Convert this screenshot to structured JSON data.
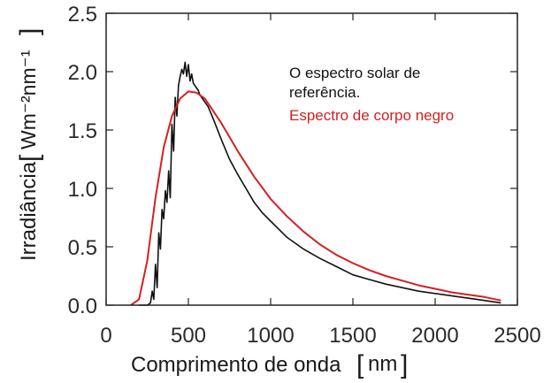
{
  "chart_data": {
    "type": "line",
    "xlabel": "Comprimento de onda",
    "xunit": "nm",
    "ylabel": "Irradiância",
    "yunit": "Wm⁻²nm⁻¹",
    "xlim": [
      0,
      2500
    ],
    "ylim": [
      0,
      2.5
    ],
    "xticks": [
      0,
      500,
      1000,
      1500,
      2000,
      2500
    ],
    "yticks": [
      "0.0",
      "0.5",
      "1.0",
      "1.5",
      "2.0",
      "2.5"
    ],
    "legend_position": "top-right",
    "legend": [
      {
        "text": "O espectro solar de",
        "color": "#111111"
      },
      {
        "text": "referência.",
        "color": "#111111"
      },
      {
        "text": "Espectro de corpo negro",
        "color": "#d42020"
      }
    ],
    "series": [
      {
        "color": "#111111",
        "x": [
          200,
          250,
          270,
          280,
          290,
          300,
          310,
          320,
          330,
          340,
          350,
          360,
          370,
          380,
          390,
          400,
          410,
          420,
          430,
          440,
          450,
          460,
          470,
          480,
          490,
          500,
          510,
          520,
          530,
          540,
          550,
          560,
          570,
          580,
          600,
          620,
          650,
          700,
          750,
          800,
          850,
          900,
          950,
          1000,
          1100,
          1200,
          1300,
          1400,
          1500,
          1600,
          1700,
          1800,
          1900,
          2000,
          2100,
          2200,
          2300,
          2400
        ],
        "y": [
          0,
          0,
          0.02,
          0.12,
          0.05,
          0.35,
          0.15,
          0.62,
          0.48,
          0.82,
          0.74,
          0.98,
          0.88,
          1.15,
          0.92,
          1.55,
          1.32,
          1.78,
          1.62,
          1.88,
          1.96,
          2.02,
          1.98,
          2.08,
          1.96,
          2.06,
          1.92,
          1.98,
          1.9,
          1.88,
          1.86,
          1.84,
          1.8,
          1.78,
          1.74,
          1.7,
          1.6,
          1.42,
          1.25,
          1.12,
          1.0,
          0.88,
          0.79,
          0.72,
          0.58,
          0.48,
          0.4,
          0.33,
          0.26,
          0.22,
          0.18,
          0.15,
          0.12,
          0.1,
          0.08,
          0.06,
          0.04,
          0.02
        ]
      },
      {
        "color": "#d42020",
        "x": [
          150,
          200,
          250,
          300,
          350,
          400,
          450,
          500,
          550,
          600,
          700,
          800,
          900,
          1000,
          1100,
          1200,
          1300,
          1400,
          1500,
          1600,
          1700,
          1800,
          1900,
          2000,
          2100,
          2200,
          2300,
          2400
        ],
        "y": [
          0,
          0.05,
          0.38,
          0.92,
          1.35,
          1.62,
          1.77,
          1.83,
          1.82,
          1.77,
          1.56,
          1.32,
          1.1,
          0.91,
          0.76,
          0.63,
          0.52,
          0.43,
          0.36,
          0.3,
          0.25,
          0.21,
          0.17,
          0.14,
          0.11,
          0.09,
          0.07,
          0.04
        ]
      }
    ]
  }
}
